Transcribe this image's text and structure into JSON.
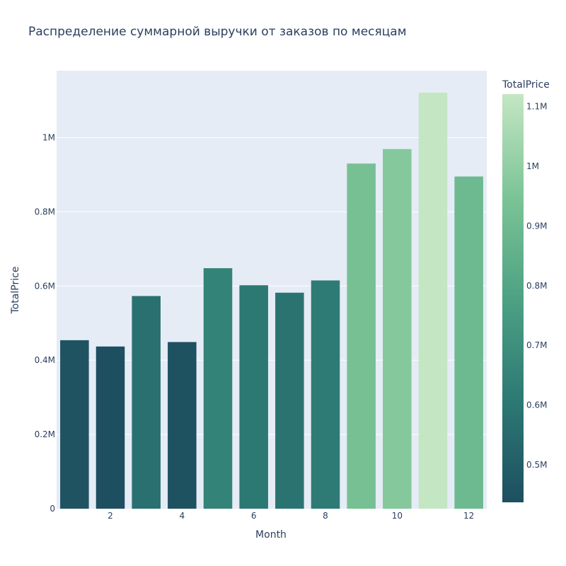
{
  "chart_data": {
    "type": "bar",
    "title": "Распределение суммарной выручки от заказов по месяцам",
    "xlabel": "Month",
    "ylabel": "TotalPrice",
    "x": [
      1,
      2,
      3,
      4,
      5,
      6,
      7,
      8,
      9,
      10,
      11,
      12
    ],
    "values": [
      454000,
      437000,
      573000,
      449000,
      648000,
      602000,
      582000,
      615000,
      930000,
      969000,
      1121000,
      895000
    ],
    "xticks": [
      2,
      4,
      6,
      8,
      10,
      12
    ],
    "xtick_labels": [
      "2",
      "4",
      "6",
      "8",
      "10",
      "12"
    ],
    "ylim": [
      0,
      1180000
    ],
    "yticks": [
      0,
      200000,
      400000,
      600000,
      800000,
      1000000
    ],
    "ytick_labels": [
      "0",
      "0.2M",
      "0.4M",
      "0.6M",
      "0.8M",
      "1M"
    ],
    "grid": true,
    "colorbar": {
      "title": "TotalPrice",
      "range": [
        437000,
        1121000
      ],
      "ticks": [
        500000,
        600000,
        700000,
        800000,
        900000,
        1000000,
        1100000
      ],
      "tick_labels": [
        "0.5M",
        "0.6M",
        "0.7M",
        "0.8M",
        "0.9M",
        "1M",
        "1.1M"
      ],
      "colorscale": [
        "#1d4f60",
        "#2d7974",
        "#4da284",
        "#7cc496",
        "#c4e6c3"
      ]
    },
    "colors": {
      "plot_bg": "#e5ecf6",
      "grid": "#ffffff",
      "text": "#2a3f5f"
    }
  }
}
